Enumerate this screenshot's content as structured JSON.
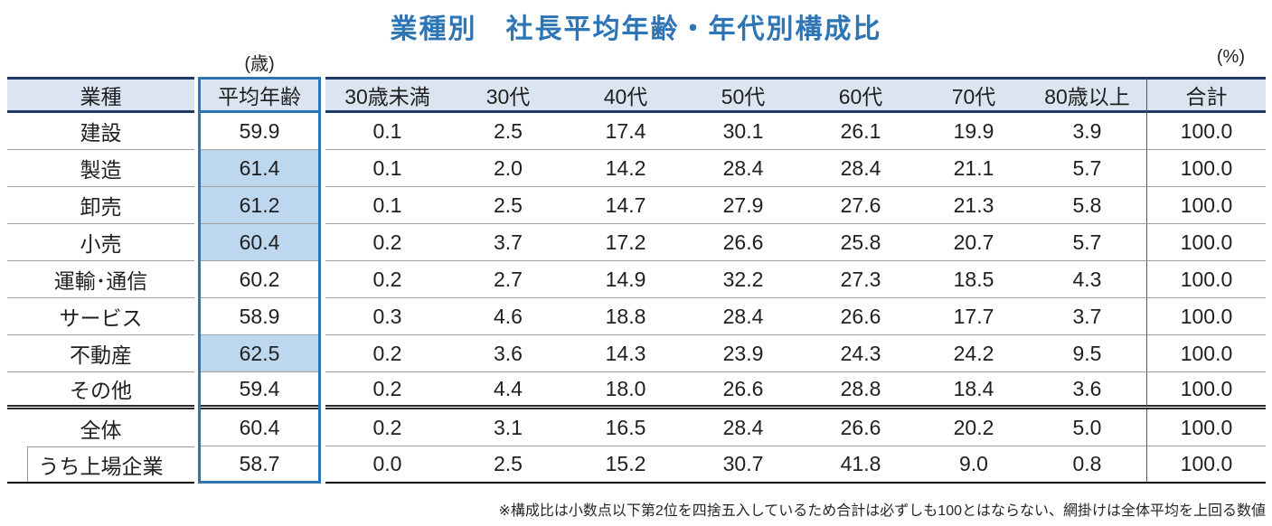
{
  "title": "業種別　社長平均年齢・年代別構成比",
  "units": {
    "age": "(歳)",
    "percent": "(%)"
  },
  "table": {
    "headers": {
      "industry": "業種",
      "avg_age": "平均年齢",
      "age_bands": [
        "30歳未満",
        "30代",
        "40代",
        "50代",
        "60代",
        "70代",
        "80歳以上"
      ],
      "total": "合計"
    },
    "rows": [
      {
        "industry": "建設",
        "avg": "59.9",
        "shaded": false,
        "values": [
          "0.1",
          "2.5",
          "17.4",
          "30.1",
          "26.1",
          "19.9",
          "3.9"
        ],
        "total": "100.0"
      },
      {
        "industry": "製造",
        "avg": "61.4",
        "shaded": true,
        "values": [
          "0.1",
          "2.0",
          "14.2",
          "28.4",
          "28.4",
          "21.1",
          "5.7"
        ],
        "total": "100.0"
      },
      {
        "industry": "卸売",
        "avg": "61.2",
        "shaded": true,
        "values": [
          "0.1",
          "2.5",
          "14.7",
          "27.9",
          "27.6",
          "21.3",
          "5.8"
        ],
        "total": "100.0"
      },
      {
        "industry": "小売",
        "avg": "60.4",
        "shaded": true,
        "values": [
          "0.2",
          "3.7",
          "17.2",
          "26.6",
          "25.8",
          "20.7",
          "5.7"
        ],
        "total": "100.0"
      },
      {
        "industry": "運輸･通信",
        "avg": "60.2",
        "shaded": false,
        "values": [
          "0.2",
          "2.7",
          "14.9",
          "32.2",
          "27.3",
          "18.5",
          "4.3"
        ],
        "total": "100.0"
      },
      {
        "industry": "サービス",
        "avg": "58.9",
        "shaded": false,
        "values": [
          "0.3",
          "4.6",
          "18.8",
          "28.4",
          "26.6",
          "17.7",
          "3.7"
        ],
        "total": "100.0"
      },
      {
        "industry": "不動産",
        "avg": "62.5",
        "shaded": true,
        "values": [
          "0.2",
          "3.6",
          "14.3",
          "23.9",
          "24.3",
          "24.2",
          "9.5"
        ],
        "total": "100.0"
      },
      {
        "industry": "その他",
        "avg": "59.4",
        "shaded": false,
        "values": [
          "0.2",
          "4.4",
          "18.0",
          "26.6",
          "28.8",
          "18.4",
          "3.6"
        ],
        "total": "100.0"
      },
      {
        "industry": "全体",
        "avg": "60.4",
        "shaded": false,
        "values": [
          "0.2",
          "3.1",
          "16.5",
          "28.4",
          "26.6",
          "20.2",
          "5.0"
        ],
        "total": "100.0",
        "summary": true
      },
      {
        "industry": "うち上場企業",
        "avg": "58.7",
        "shaded": false,
        "values": [
          "0.0",
          "2.5",
          "15.2",
          "30.7",
          "41.8",
          "9.0",
          "0.8"
        ],
        "total": "100.0",
        "summary": true,
        "sub": true
      }
    ]
  },
  "footnote": "※構成比は小数点以下第2位を四捨五入しているため合計は必ずしも100とはならない、網掛けは全体平均を上回る数値",
  "colors": {
    "title_blue": "#2e75b6",
    "header_fill": "#dbe5f1",
    "header_rule_navy": "#1f3864",
    "highlight_box_blue": "#2e75b6",
    "shaded_cell_blue": "#bdd7ee",
    "row_separator_gray": "#a0a0a0"
  },
  "chart_data": {
    "type": "table",
    "title": "業種別　社長平均年齢・年代別構成比",
    "columns": [
      "業種",
      "平均年齢(歳)",
      "30歳未満",
      "30代",
      "40代",
      "50代",
      "60代",
      "70代",
      "80歳以上",
      "合計(%)"
    ],
    "rows": [
      [
        "建設",
        59.9,
        0.1,
        2.5,
        17.4,
        30.1,
        26.1,
        19.9,
        3.9,
        100.0
      ],
      [
        "製造",
        61.4,
        0.1,
        2.0,
        14.2,
        28.4,
        28.4,
        21.1,
        5.7,
        100.0
      ],
      [
        "卸売",
        61.2,
        0.1,
        2.5,
        14.7,
        27.9,
        27.6,
        21.3,
        5.8,
        100.0
      ],
      [
        "小売",
        60.4,
        0.2,
        3.7,
        17.2,
        26.6,
        25.8,
        20.7,
        5.7,
        100.0
      ],
      [
        "運輸･通信",
        60.2,
        0.2,
        2.7,
        14.9,
        32.2,
        27.3,
        18.5,
        4.3,
        100.0
      ],
      [
        "サービス",
        58.9,
        0.3,
        4.6,
        18.8,
        28.4,
        26.6,
        17.7,
        3.7,
        100.0
      ],
      [
        "不動産",
        62.5,
        0.2,
        3.6,
        14.3,
        23.9,
        24.3,
        24.2,
        9.5,
        100.0
      ],
      [
        "その他",
        59.4,
        0.2,
        4.4,
        18.0,
        26.6,
        28.8,
        18.4,
        3.6,
        100.0
      ],
      [
        "全体",
        60.4,
        0.2,
        3.1,
        16.5,
        28.4,
        26.6,
        20.2,
        5.0,
        100.0
      ],
      [
        "うち上場企業",
        58.7,
        0.0,
        2.5,
        15.2,
        30.7,
        41.8,
        9.0,
        0.8,
        100.0
      ]
    ],
    "shaded_cells_above_overall_average": [
      "製造",
      "卸売",
      "小売",
      "不動産"
    ],
    "footnote": "※構成比は小数点以下第2位を四捨五入しているため合計は必ずしも100とはならない、網掛けは全体平均を上回る数値"
  }
}
